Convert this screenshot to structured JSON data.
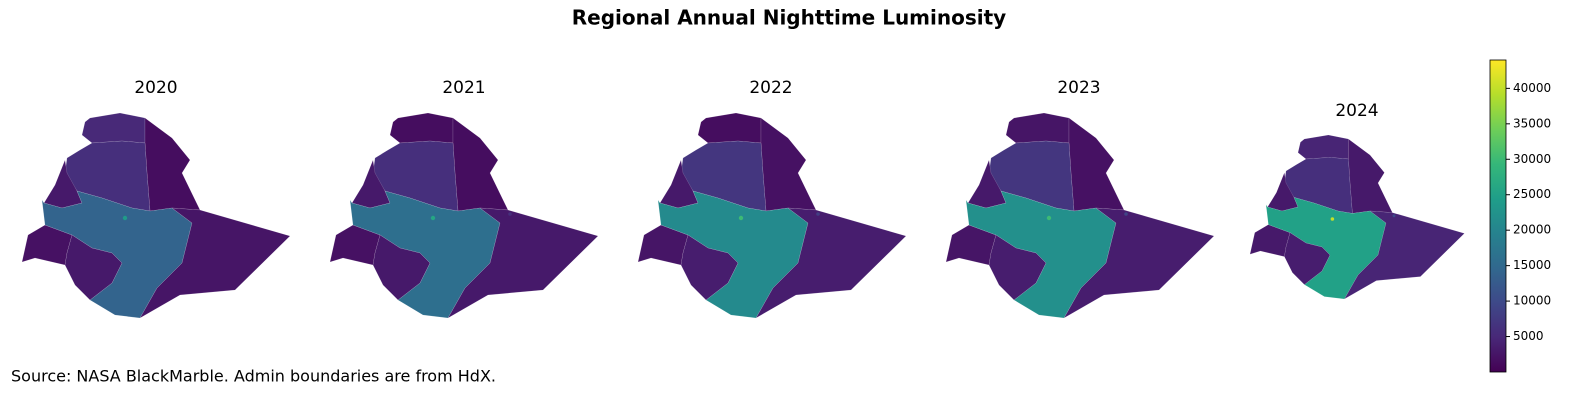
{
  "chart_data": {
    "type": "choropleth",
    "title": "Regional Annual Nighttime Luminosity",
    "note": "Source: NASA BlackMarble. Admin boundaries are from HdX.",
    "colormap": "viridis",
    "clim": [
      0,
      44000
    ],
    "cticks": [
      5000,
      10000,
      15000,
      20000,
      25000,
      30000,
      35000,
      40000
    ],
    "panels": [
      {
        "title": "2020",
        "values": [
          5000,
          1500,
          6000,
          3000,
          2000,
          14000,
          3000,
          2500,
          24000,
          3000
        ]
      },
      {
        "title": "2021",
        "values": [
          1500,
          1500,
          6000,
          3000,
          2000,
          16000,
          3000,
          3000,
          26000,
          6000
        ]
      },
      {
        "title": "2022",
        "values": [
          1500,
          2000,
          7000,
          3000,
          2500,
          21000,
          3500,
          3500,
          30000,
          8000
        ]
      },
      {
        "title": "2023",
        "values": [
          2500,
          2000,
          7000,
          3000,
          2500,
          22000,
          3500,
          3500,
          30000,
          9000
        ]
      },
      {
        "title": "2024",
        "values": [
          4500,
          3000,
          6000,
          3000,
          3000,
          25000,
          3500,
          4500,
          40000,
          10000
        ]
      }
    ]
  }
}
